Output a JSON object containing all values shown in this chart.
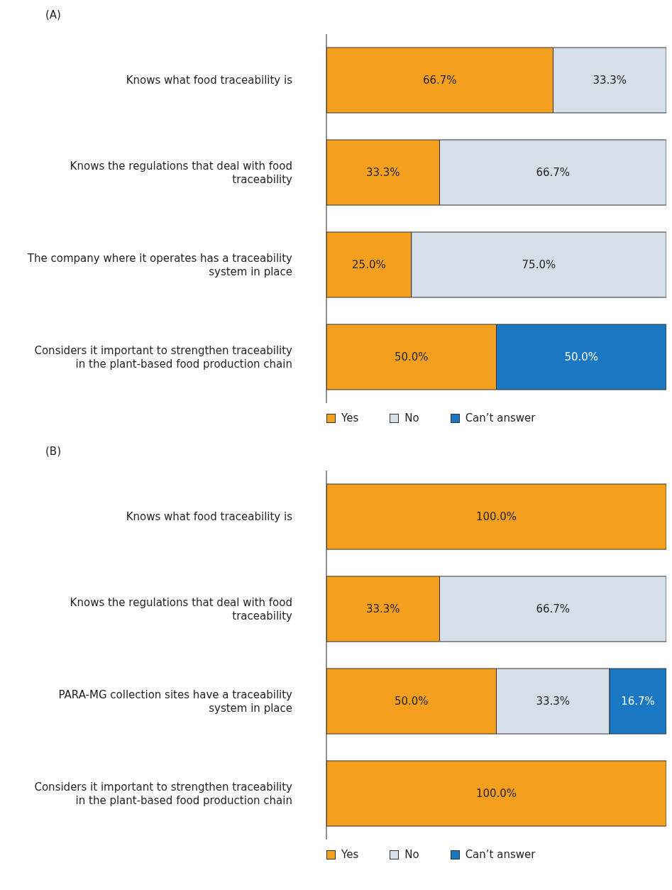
{
  "chart_data": [
    {
      "type": "bar",
      "title": "(A)",
      "orientation": "horizontal",
      "stacked": true,
      "legend": "bottom",
      "tick_labels": "y",
      "xlim": [
        0,
        100
      ],
      "categories": [
        "Knows what food traceability is",
        "Knows the regulations that deal with food traceability",
        "The company where it operates has a traceability system in place",
        "Considers it important to strengthen traceability in the plant-based food production chain"
      ],
      "series": [
        {
          "name": "Yes",
          "color": "#f59f1e",
          "values": [
            66.7,
            33.3,
            25.0,
            50.0
          ],
          "value_labels": [
            "66.7%",
            "33.3%",
            "25.0%",
            "50.0%"
          ]
        },
        {
          "name": "No",
          "color": "#d5dfe9",
          "values": [
            33.3,
            66.7,
            75.0,
            0
          ],
          "value_labels": [
            "33.3%",
            "66.7%",
            "75.0%",
            null
          ]
        },
        {
          "name": "Can’t answer",
          "color": "#1a78c2",
          "values": [
            0,
            0,
            0,
            50.0
          ],
          "value_labels": [
            null,
            null,
            null,
            "50.0%"
          ]
        }
      ]
    },
    {
      "type": "bar",
      "title": "(B)",
      "orientation": "horizontal",
      "stacked": true,
      "legend": "bottom",
      "tick_labels": "y",
      "xlim": [
        0,
        100
      ],
      "categories": [
        "Knows what food traceability is",
        "Knows the regulations that deal with food traceability",
        "PARA-MG collection sites have a traceability system in place",
        "Considers it important to strengthen traceability in the plant-based food production chain"
      ],
      "series": [
        {
          "name": "Yes",
          "color": "#f59f1e",
          "values": [
            100.0,
            33.3,
            50.0,
            100.0
          ],
          "value_labels": [
            "100.0%",
            "33.3%",
            "50.0%",
            "100.0%"
          ]
        },
        {
          "name": "No",
          "color": "#d5dfe9",
          "values": [
            0,
            66.7,
            33.3,
            0
          ],
          "value_labels": [
            null,
            "66.7%",
            "33.3%",
            null
          ]
        },
        {
          "name": "Can’t answer",
          "color": "#1a78c2",
          "values": [
            0,
            0,
            16.7,
            0
          ],
          "value_labels": [
            null,
            null,
            "16.7%",
            null
          ]
        }
      ]
    }
  ]
}
